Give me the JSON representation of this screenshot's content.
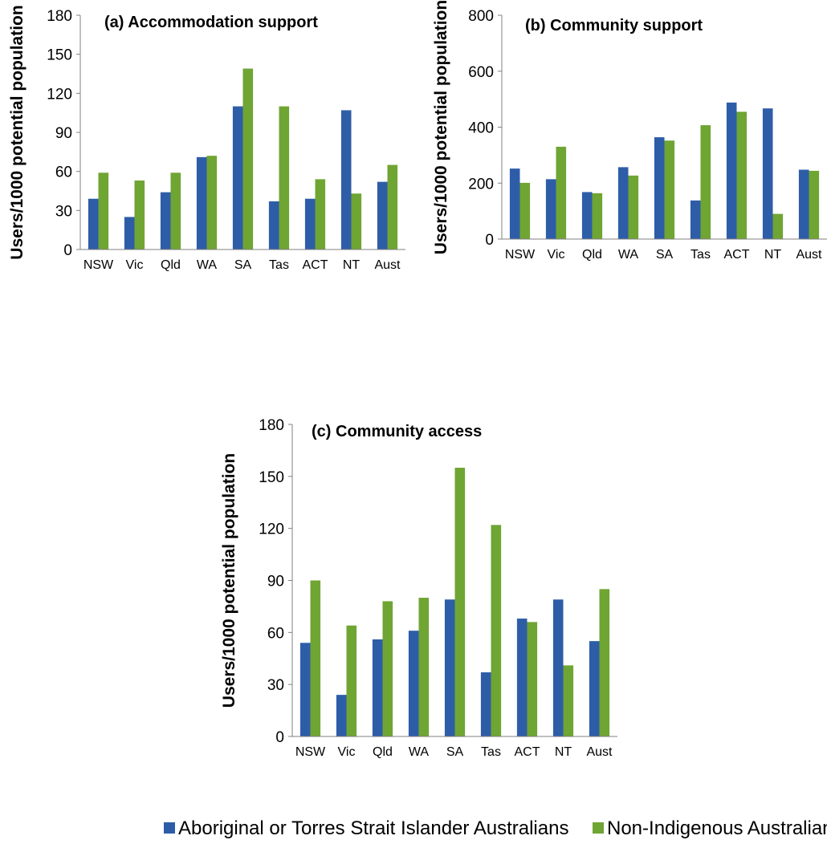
{
  "colors": {
    "aboriginal": "#2E5DA8",
    "non_indigenous": "#6FA533",
    "axis": "#808080"
  },
  "legend": [
    {
      "label": "Aboriginal or Torres Strait Islander Australians",
      "color": "#2E5DA8"
    },
    {
      "label": "Non-Indigenous Australians",
      "color": "#6FA533"
    }
  ],
  "chart_data": [
    {
      "type": "bar",
      "title": "(a) Accommodation support",
      "ylabel": "Users/1000 potential population",
      "ylim": [
        0,
        180
      ],
      "yticks": [
        0,
        30,
        60,
        90,
        120,
        150,
        180
      ],
      "categories": [
        "NSW",
        "Vic",
        "Qld",
        "WA",
        "SA",
        "Tas",
        "ACT",
        "NT",
        "Aust"
      ],
      "series": [
        {
          "name": "Aboriginal or Torres Strait Islander Australians",
          "values": [
            39,
            25,
            44,
            71,
            110,
            37,
            39,
            107,
            52
          ]
        },
        {
          "name": "Non-Indigenous Australians",
          "values": [
            59,
            53,
            59,
            72,
            139,
            110,
            54,
            43,
            65
          ]
        }
      ]
    },
    {
      "type": "bar",
      "title": "(b) Community support",
      "ylabel": "Users/1000 potential population",
      "ylim": [
        0,
        800
      ],
      "yticks": [
        0,
        200,
        400,
        600,
        800
      ],
      "categories": [
        "NSW",
        "Vic",
        "Qld",
        "WA",
        "SA",
        "Tas",
        "ACT",
        "NT",
        "Aust"
      ],
      "series": [
        {
          "name": "Aboriginal or Torres Strait Islander Australians",
          "values": [
            252,
            214,
            168,
            257,
            364,
            138,
            488,
            467,
            248
          ]
        },
        {
          "name": "Non-Indigenous Australians",
          "values": [
            201,
            330,
            164,
            227,
            352,
            407,
            455,
            90,
            244
          ]
        }
      ]
    },
    {
      "type": "bar",
      "title": "(c) Community access",
      "ylabel": "Users/1000 potential population",
      "ylim": [
        0,
        180
      ],
      "yticks": [
        0,
        30,
        60,
        90,
        120,
        150,
        180
      ],
      "categories": [
        "NSW",
        "Vic",
        "Qld",
        "WA",
        "SA",
        "Tas",
        "ACT",
        "NT",
        "Aust"
      ],
      "series": [
        {
          "name": "Aboriginal or Torres Strait Islander Australians",
          "values": [
            54,
            24,
            56,
            61,
            79,
            37,
            68,
            79,
            55
          ]
        },
        {
          "name": "Non-Indigenous Australians",
          "values": [
            90,
            64,
            78,
            80,
            155,
            122,
            66,
            41,
            85
          ]
        }
      ]
    }
  ]
}
